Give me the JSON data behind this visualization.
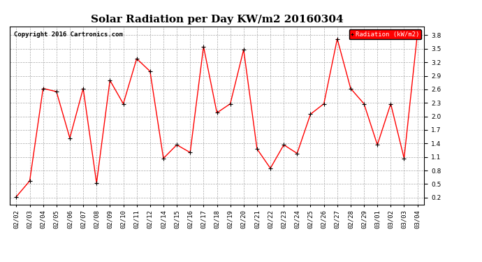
{
  "title": "Solar Radiation per Day KW/m2 20160304",
  "copyright": "Copyright 2016 Cartronics.com",
  "legend_label": "Radiation (kW/m2)",
  "dates": [
    "02/02",
    "02/03",
    "02/04",
    "02/05",
    "02/06",
    "02/07",
    "02/08",
    "02/09",
    "02/10",
    "02/11",
    "02/12",
    "02/14",
    "02/15",
    "02/16",
    "02/17",
    "02/18",
    "02/19",
    "02/20",
    "02/21",
    "02/22",
    "02/23",
    "02/24",
    "02/25",
    "02/26",
    "02/27",
    "02/28",
    "02/29",
    "03/01",
    "03/02",
    "03/03",
    "03/04"
  ],
  "values": [
    0.22,
    0.57,
    2.62,
    2.55,
    1.52,
    2.62,
    0.52,
    2.8,
    2.28,
    3.28,
    3.0,
    1.07,
    1.37,
    1.2,
    3.55,
    2.08,
    2.28,
    3.48,
    1.28,
    0.85,
    1.37,
    1.18,
    2.05,
    2.28,
    3.72,
    2.62,
    2.28,
    1.37,
    2.28,
    1.07,
    3.85
  ],
  "line_color": "red",
  "marker_color": "black",
  "background_color": "#ffffff",
  "grid_color": "#aaaaaa",
  "ylim": [
    0.05,
    4.0
  ],
  "yticks": [
    0.2,
    0.5,
    0.8,
    1.1,
    1.4,
    1.7,
    2.0,
    2.3,
    2.6,
    2.9,
    3.2,
    3.5,
    3.8
  ],
  "title_fontsize": 11,
  "copyright_fontsize": 6.5,
  "tick_fontsize": 6.5,
  "legend_box_color": "red",
  "legend_text_color": "white"
}
